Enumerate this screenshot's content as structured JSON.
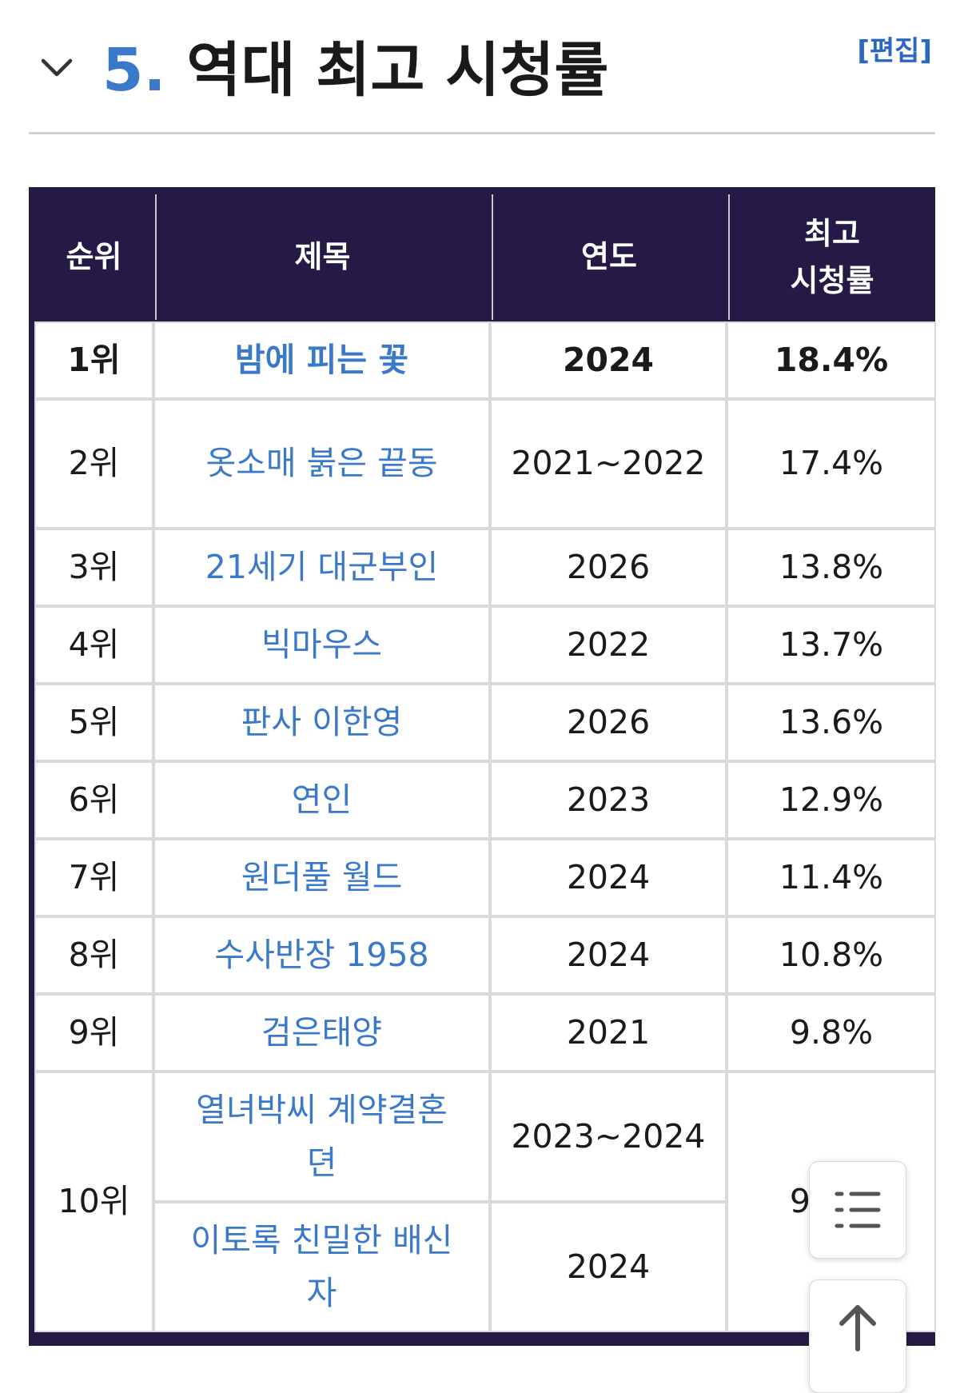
{
  "section": {
    "number": "5.",
    "title": "역대 최고 시청률",
    "edit_label": "[편집]"
  },
  "table": {
    "headers": {
      "rank": "순위",
      "title": "제목",
      "year": "연도",
      "rating_line1": "최고",
      "rating_line2": "시청률"
    },
    "rows": [
      {
        "rank": "1위",
        "title": "밤에 피는 꽃",
        "year": "2024",
        "rating": "18.4%"
      },
      {
        "rank": "2위",
        "title": "옷소매 붉은 끝동",
        "year": "2021~2022",
        "rating": "17.4%"
      },
      {
        "rank": "3위",
        "title": "21세기 대군부인",
        "year": "2026",
        "rating": "13.8%"
      },
      {
        "rank": "4위",
        "title": "빅마우스",
        "year": "2022",
        "rating": "13.7%"
      },
      {
        "rank": "5위",
        "title": "판사 이한영",
        "year": "2026",
        "rating": "13.6%"
      },
      {
        "rank": "6위",
        "title": "연인",
        "year": "2023",
        "rating": "12.9%"
      },
      {
        "rank": "7위",
        "title": "원더풀 월드",
        "year": "2024",
        "rating": "11.4%"
      },
      {
        "rank": "8위",
        "title": "수사반장 1958",
        "year": "2024",
        "rating": "10.8%"
      },
      {
        "rank": "9위",
        "title": "검은태양",
        "year": "2021",
        "rating": "9.8%"
      }
    ],
    "tied": {
      "rank": "10위",
      "rating": "9.6%",
      "entries": [
        {
          "title": "열녀박씨 계약결혼뎐",
          "year": "2023~2024"
        },
        {
          "title": "이토록 친밀한 배신자",
          "year": "2024"
        }
      ]
    }
  },
  "floating_buttons": {
    "toc": "list-icon",
    "top": "arrow-up-icon"
  }
}
